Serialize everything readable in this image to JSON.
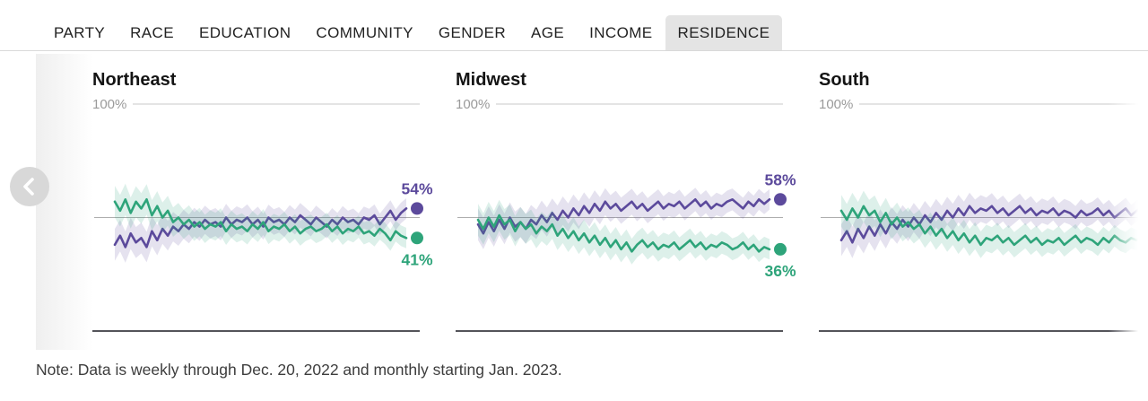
{
  "tabs": {
    "items": [
      {
        "label": "PARTY",
        "selected": false
      },
      {
        "label": "RACE",
        "selected": false
      },
      {
        "label": "EDUCATION",
        "selected": false
      },
      {
        "label": "COMMUNITY",
        "selected": false
      },
      {
        "label": "GENDER",
        "selected": false
      },
      {
        "label": "AGE",
        "selected": false
      },
      {
        "label": "INCOME",
        "selected": false
      },
      {
        "label": "RESIDENCE",
        "selected": true
      }
    ],
    "selected_label": "RESIDENCE"
  },
  "colors": {
    "purple": "#5c4a9c",
    "green": "#2ea47a",
    "gridline_top": "#c9c9c9",
    "midline": "#aeaeae",
    "baseline": "#1b1b24",
    "tab_selected_bg": "#e4e4e4"
  },
  "carousel": {
    "prev_button": "left-chevron"
  },
  "note": {
    "text": "Note: Data is weekly through Dec. 20, 2022 and monthly starting Jan. 2023."
  },
  "chart_data": [
    {
      "type": "line",
      "title": "Northeast",
      "ylabel_top": "100%",
      "ylim": [
        0,
        100
      ],
      "midline": 50,
      "grid": "top 100% line, 50% midline, 0% baseline",
      "legend_position": "end-of-line labels",
      "band_halfwidth_pct": {
        "start": 7,
        "end": 4.5
      },
      "show_end_markers": true,
      "series": [
        {
          "name": "purple-series",
          "color": "#5c4a9c",
          "end_label": "54%",
          "end_value": 54,
          "values": [
            38,
            42,
            37,
            43,
            39,
            41,
            37,
            44,
            40,
            45,
            42,
            46,
            44,
            47,
            45,
            48,
            46,
            49,
            47,
            48,
            46,
            50,
            47,
            49,
            48,
            50,
            47,
            49,
            46,
            50,
            48,
            49,
            47,
            50,
            48,
            51,
            49,
            47,
            50,
            48,
            46,
            49,
            47,
            50,
            48,
            49,
            47,
            50,
            49,
            51,
            47,
            50,
            53,
            49,
            52,
            54
          ]
        },
        {
          "name": "green-series",
          "color": "#2ea47a",
          "end_label": "41%",
          "end_value": 41,
          "values": [
            57,
            53,
            58,
            52,
            57,
            54,
            58,
            51,
            55,
            50,
            53,
            48,
            50,
            47,
            49,
            46,
            48,
            45,
            47,
            46,
            48,
            44,
            47,
            45,
            46,
            44,
            47,
            45,
            48,
            44,
            46,
            45,
            47,
            44,
            46,
            43,
            45,
            46,
            44,
            45,
            47,
            44,
            46,
            43,
            45,
            44,
            46,
            43,
            44,
            42,
            45,
            43,
            40,
            44,
            42,
            41
          ]
        }
      ]
    },
    {
      "type": "line",
      "title": "Midwest",
      "ylabel_top": "100%",
      "ylim": [
        0,
        100
      ],
      "midline": 50,
      "grid": "top 100% line, 50% midline, 0% baseline",
      "legend_position": "end-of-line labels",
      "band_halfwidth_pct": {
        "start": 7,
        "end": 4.5
      },
      "show_end_markers": true,
      "series": [
        {
          "name": "purple-series",
          "color": "#5c4a9c",
          "end_label": "58%",
          "end_value": 58,
          "values": [
            47,
            43,
            48,
            44,
            49,
            45,
            50,
            46,
            48,
            45,
            49,
            47,
            51,
            48,
            52,
            49,
            53,
            50,
            54,
            51,
            55,
            52,
            56,
            53,
            57,
            54,
            56,
            53,
            55,
            57,
            54,
            56,
            53,
            55,
            57,
            54,
            56,
            55,
            57,
            54,
            56,
            58,
            55,
            57,
            54,
            56,
            55,
            57,
            58,
            56,
            54,
            57,
            55,
            58,
            56,
            58
          ]
        },
        {
          "name": "green-series",
          "color": "#2ea47a",
          "end_label": "36%",
          "end_value": 36,
          "values": [
            49,
            45,
            50,
            46,
            51,
            47,
            49,
            44,
            48,
            45,
            47,
            43,
            46,
            44,
            47,
            42,
            45,
            41,
            44,
            40,
            43,
            39,
            42,
            38,
            41,
            37,
            40,
            36,
            39,
            35,
            38,
            40,
            37,
            39,
            36,
            38,
            37,
            39,
            36,
            38,
            40,
            37,
            39,
            36,
            38,
            37,
            39,
            38,
            36,
            37,
            39,
            36,
            38,
            35,
            37,
            36
          ]
        }
      ]
    },
    {
      "type": "line",
      "title": "South",
      "ylabel_top": "100%",
      "ylim": [
        0,
        100
      ],
      "midline": 50,
      "grid": "top 100% line, 50% midline, 0% baseline",
      "legend_position": "clipped off right edge",
      "band_halfwidth_pct": {
        "start": 7,
        "end": 4.5
      },
      "show_end_markers": false,
      "series": [
        {
          "name": "purple-series",
          "color": "#5c4a9c",
          "end_label": "",
          "end_value": 53,
          "values": [
            40,
            44,
            39,
            45,
            41,
            46,
            42,
            47,
            43,
            48,
            45,
            49,
            46,
            50,
            47,
            51,
            48,
            52,
            49,
            53,
            50,
            54,
            51,
            55,
            52,
            54,
            53,
            55,
            52,
            54,
            51,
            53,
            55,
            52,
            54,
            51,
            53,
            52,
            54,
            51,
            53,
            52,
            50,
            53,
            51,
            52,
            54,
            51,
            53,
            50,
            52,
            54,
            51,
            53,
            55,
            53
          ]
        },
        {
          "name": "green-series",
          "color": "#2ea47a",
          "end_label": "",
          "end_value": 41,
          "values": [
            53,
            49,
            54,
            50,
            55,
            51,
            53,
            48,
            52,
            47,
            50,
            46,
            48,
            45,
            47,
            43,
            46,
            42,
            45,
            41,
            44,
            40,
            43,
            39,
            42,
            38,
            41,
            40,
            42,
            39,
            41,
            38,
            40,
            42,
            39,
            41,
            38,
            40,
            39,
            41,
            38,
            40,
            42,
            39,
            41,
            40,
            38,
            41,
            39,
            42,
            40,
            39,
            41,
            40,
            42,
            41
          ]
        }
      ]
    }
  ]
}
